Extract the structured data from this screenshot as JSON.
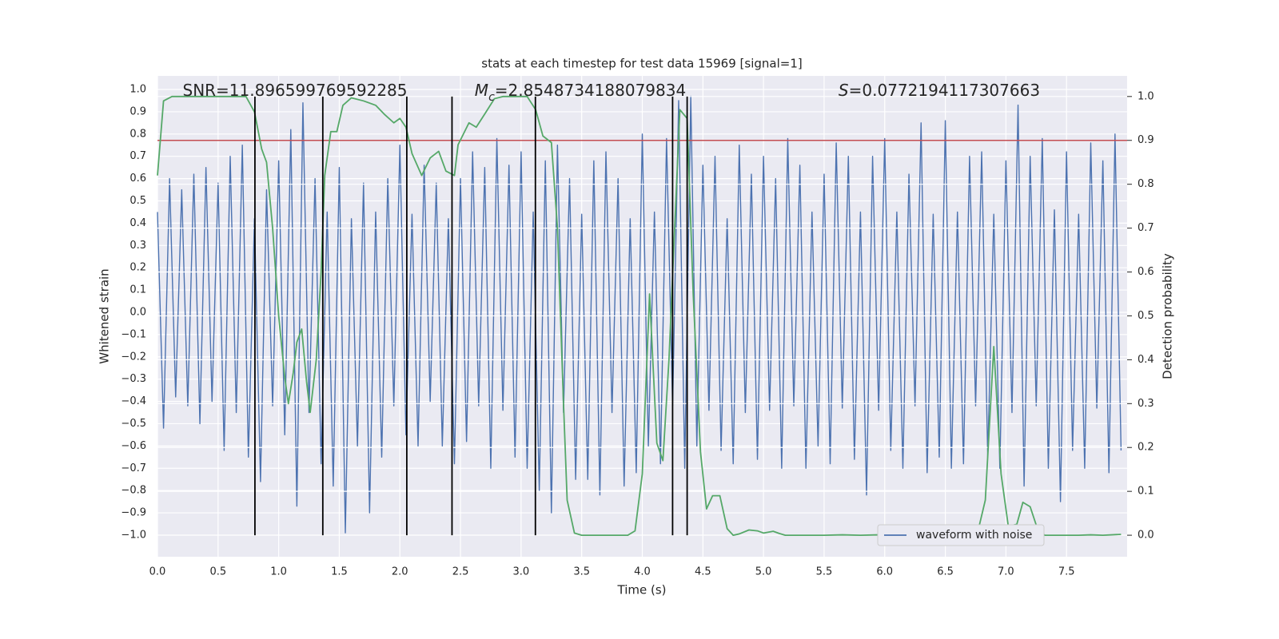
{
  "chart_data": {
    "type": "line",
    "title": "stats at each timestep for test data 15969 [signal=1]",
    "xlabel": "Time (s)",
    "ylabel": "Whitened strain",
    "y2label": "Detection probability",
    "annotations": [
      {
        "text": "SNR=11.896599769592285"
      },
      {
        "symbol": "M",
        "subscript": "c",
        "text": "=2.8548734188079834"
      },
      {
        "symbol": "S",
        "text": "=0.0772194117307663"
      }
    ],
    "xlim": [
      0,
      8.0
    ],
    "ylim": [
      -1.097,
      1.061
    ],
    "y2lim": [
      -0.049,
      1.047
    ],
    "xticks": [
      {
        "value": 0,
        "label": "0.0"
      },
      0.5,
      {
        "value": 1,
        "label": "1.0"
      },
      1.5,
      {
        "value": 2,
        "label": "2.0"
      },
      2.5,
      {
        "value": 3,
        "label": "3.0"
      },
      3.5,
      {
        "value": 4,
        "label": "4.0"
      },
      4.5,
      {
        "value": 5,
        "label": "5.0"
      },
      5.5,
      {
        "value": 6,
        "label": "6.0"
      },
      6.5,
      {
        "value": 7,
        "label": "7.0"
      },
      7.5
    ],
    "yticks": [
      {
        "value": -1,
        "label": "−1.0"
      },
      {
        "value": -0.9,
        "label": "−0.9"
      },
      {
        "value": -0.8,
        "label": "−0.8"
      },
      {
        "value": -0.7,
        "label": "−0.7"
      },
      {
        "value": -0.6,
        "label": "−0.6"
      },
      {
        "value": -0.5,
        "label": "−0.5"
      },
      {
        "value": -0.4,
        "label": "−0.4"
      },
      {
        "value": -0.3,
        "label": "−0.3"
      },
      {
        "value": -0.2,
        "label": "−0.2"
      },
      {
        "value": -0.1,
        "label": "−0.1"
      },
      {
        "value": 0,
        "label": "0.0"
      },
      0.1,
      0.2,
      0.3,
      0.4,
      0.5,
      0.6,
      0.7,
      0.8,
      0.9,
      {
        "value": 1,
        "label": "1.0"
      }
    ],
    "y2ticks": [
      {
        "value": 0,
        "label": "0.0"
      },
      0.1,
      0.2,
      0.3,
      0.4,
      0.5,
      0.6,
      0.7,
      0.8,
      0.9,
      {
        "value": 1,
        "label": "1.0"
      }
    ],
    "grid": true,
    "legend": "lower right",
    "threshold": {
      "value": 0.9,
      "axis": "y2",
      "color": "#c44e52"
    },
    "vlines": {
      "x": [
        0.804,
        1.364,
        2.057,
        2.43,
        3.118,
        4.25,
        4.37
      ],
      "range": [
        0,
        1
      ],
      "axis": "y2",
      "color": "#000000"
    },
    "series": [
      {
        "name": "waveform with noise",
        "color": "#4c72b0",
        "x": [
          0,
          0.05,
          0.1,
          0.15,
          0.2,
          0.25,
          0.3,
          0.35,
          0.4,
          0.45,
          0.5,
          0.55,
          0.6,
          0.65,
          0.7,
          0.75,
          0.8,
          0.85,
          0.9,
          0.95,
          1,
          1.05,
          1.1,
          1.15,
          1.2,
          1.25,
          1.3,
          1.35,
          1.4,
          1.45,
          1.5,
          1.55,
          1.6,
          1.65,
          1.7,
          1.75,
          1.8,
          1.85,
          1.9,
          1.95,
          2,
          2.05,
          2.1,
          2.15,
          2.2,
          2.25,
          2.3,
          2.35,
          2.4,
          2.45,
          2.5,
          2.55,
          2.6,
          2.65,
          2.7,
          2.75,
          2.8,
          2.85,
          2.9,
          2.95,
          3,
          3.05,
          3.1,
          3.15,
          3.2,
          3.25,
          3.3,
          3.35,
          3.4,
          3.45,
          3.5,
          3.55,
          3.6,
          3.65,
          3.7,
          3.75,
          3.8,
          3.85,
          3.9,
          3.95,
          4,
          4.05,
          4.1,
          4.15,
          4.2,
          4.25,
          4.3,
          4.35,
          4.4,
          4.45,
          4.5,
          4.55,
          4.6,
          4.65,
          4.7,
          4.75,
          4.8,
          4.85,
          4.9,
          4.95,
          5,
          5.05,
          5.1,
          5.15,
          5.2,
          5.25,
          5.3,
          5.35,
          5.4,
          5.45,
          5.5,
          5.55,
          5.6,
          5.65,
          5.7,
          5.75,
          5.8,
          5.85,
          5.9,
          5.95,
          6,
          6.05,
          6.1,
          6.15,
          6.2,
          6.25,
          6.3,
          6.35,
          6.4,
          6.45,
          6.5,
          6.55,
          6.6,
          6.65,
          6.7,
          6.75,
          6.8,
          6.85,
          6.9,
          6.95,
          7,
          7.05,
          7.1,
          7.15,
          7.2,
          7.25,
          7.3,
          7.35,
          7.4,
          7.45,
          7.5,
          7.55,
          7.6,
          7.65,
          7.7,
          7.75,
          7.8,
          7.85,
          7.9,
          7.95
        ],
        "values": [
          0.45,
          -0.52,
          0.6,
          -0.38,
          0.55,
          -0.42,
          0.62,
          -0.5,
          0.65,
          -0.4,
          0.58,
          -0.62,
          0.7,
          -0.45,
          0.75,
          -0.65,
          0.42,
          -0.76,
          0.55,
          -0.42,
          0.68,
          -0.55,
          0.82,
          -0.87,
          0.94,
          -0.45,
          0.6,
          -0.68,
          0.45,
          -0.78,
          0.65,
          -0.99,
          0.42,
          -0.6,
          0.58,
          -0.9,
          0.45,
          -0.65,
          0.6,
          -0.42,
          0.75,
          -0.55,
          0.44,
          -0.6,
          0.66,
          -0.4,
          0.58,
          -0.6,
          0.42,
          -0.68,
          0.6,
          -0.58,
          0.72,
          -0.42,
          0.65,
          -0.7,
          0.78,
          -0.44,
          0.66,
          -0.65,
          0.72,
          -0.7,
          0.45,
          -0.8,
          0.68,
          -0.9,
          0.75,
          -0.45,
          0.6,
          -0.75,
          0.44,
          -0.75,
          0.68,
          -0.82,
          0.72,
          -0.45,
          0.6,
          -0.78,
          0.42,
          -0.72,
          0.8,
          -0.6,
          0.45,
          -0.68,
          0.78,
          -0.42,
          0.95,
          -0.7,
          0.97,
          -0.6,
          0.66,
          -0.44,
          0.7,
          -0.62,
          0.42,
          -0.68,
          0.75,
          -0.45,
          0.62,
          -0.66,
          0.7,
          -0.44,
          0.6,
          -0.7,
          0.78,
          -0.42,
          0.66,
          -0.7,
          0.45,
          -0.6,
          0.62,
          -0.68,
          0.76,
          -0.43,
          0.7,
          -0.66,
          0.45,
          -0.82,
          0.7,
          -0.44,
          0.78,
          -0.62,
          0.45,
          -0.7,
          0.62,
          -0.42,
          0.85,
          -0.72,
          0.44,
          -0.65,
          0.86,
          -0.7,
          0.45,
          -0.68,
          0.7,
          -0.42,
          0.72,
          -0.65,
          0.44,
          -0.7,
          0.68,
          -0.45,
          0.93,
          -0.78,
          0.7,
          -0.42,
          0.78,
          -0.7,
          0.46,
          -0.85,
          0.72,
          -0.62,
          0.44,
          -0.7,
          0.76,
          -0.43,
          0.68,
          -0.72,
          0.8,
          -0.62
        ]
      },
      {
        "color": "#55a868",
        "axis": "y2",
        "x": [
          0,
          0.05,
          0.12,
          0.28,
          0.68,
          0.73,
          0.8,
          0.86,
          0.9,
          0.95,
          1.0,
          1.05,
          1.08,
          1.12,
          1.15,
          1.19,
          1.23,
          1.26,
          1.31,
          1.35,
          1.38,
          1.43,
          1.48,
          1.53,
          1.6,
          1.7,
          1.8,
          1.87,
          1.95,
          2.0,
          2.05,
          2.1,
          2.18,
          2.25,
          2.32,
          2.38,
          2.45,
          2.48,
          2.57,
          2.63,
          2.7,
          2.78,
          2.85,
          3.05,
          3.12,
          3.18,
          3.25,
          3.3,
          3.35,
          3.38,
          3.44,
          3.5,
          3.6,
          3.8,
          3.88,
          3.94,
          4.0,
          4.06,
          4.12,
          4.17,
          4.22,
          4.27,
          4.31,
          4.37,
          4.42,
          4.48,
          4.53,
          4.58,
          4.64,
          4.7,
          4.75,
          4.8,
          4.88,
          4.95,
          5.0,
          5.08,
          5.13,
          5.18,
          5.35,
          5.5,
          5.65,
          5.8,
          5.95,
          6.1,
          6.3,
          6.5,
          6.63,
          6.7,
          6.77,
          6.83,
          6.9,
          6.96,
          7.02,
          7.09,
          7.14,
          7.2,
          7.26,
          7.32,
          7.5,
          7.6,
          7.7,
          7.8,
          7.95
        ],
        "values": [
          0.82,
          0.99,
          1.0,
          1.0,
          1.0,
          1.0,
          0.965,
          0.88,
          0.85,
          0.7,
          0.5,
          0.36,
          0.3,
          0.37,
          0.44,
          0.47,
          0.35,
          0.28,
          0.4,
          0.6,
          0.82,
          0.92,
          0.92,
          0.98,
          0.997,
          0.99,
          0.98,
          0.96,
          0.94,
          0.95,
          0.93,
          0.87,
          0.82,
          0.86,
          0.875,
          0.83,
          0.82,
          0.89,
          0.94,
          0.93,
          0.96,
          0.995,
          1.0,
          1.0,
          0.97,
          0.91,
          0.895,
          0.7,
          0.3,
          0.08,
          0.005,
          0.0,
          0.0,
          0.0,
          0.0,
          0.01,
          0.14,
          0.55,
          0.21,
          0.17,
          0.4,
          0.72,
          0.97,
          0.95,
          0.55,
          0.19,
          0.06,
          0.09,
          0.09,
          0.015,
          0.0,
          0.003,
          0.012,
          0.01,
          0.005,
          0.009,
          0.004,
          0.0,
          0.0,
          0.0,
          0.001,
          0.0,
          0.001,
          0.0,
          0.0,
          0.0,
          0.001,
          0.003,
          0.01,
          0.08,
          0.43,
          0.14,
          0.02,
          0.025,
          0.075,
          0.065,
          0.015,
          0.0,
          0.0,
          0.0,
          0.001,
          0.0,
          0.002
        ]
      }
    ]
  }
}
